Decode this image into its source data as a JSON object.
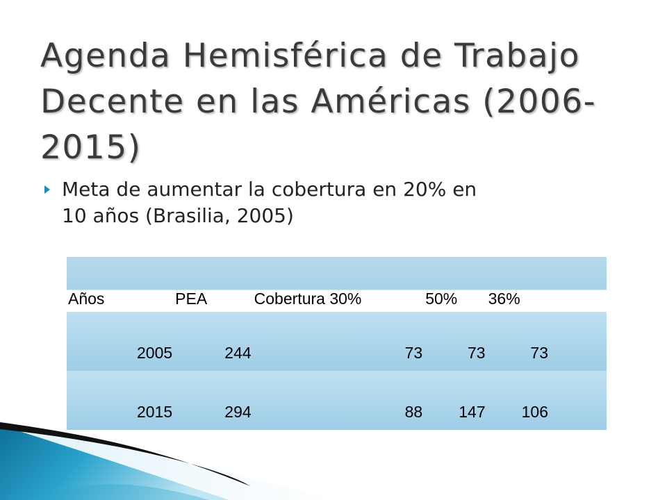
{
  "slide": {
    "title": "Agenda Hemisférica de Trabajo Decente en las Américas (2006-2015)",
    "bullet": {
      "line1": "Meta de aumentar la cobertura en 20% en",
      "line2": "10 años (Brasilia, 2005)"
    },
    "table": {
      "headers": [
        "Años",
        "PEA",
        "Cobertura 30%",
        "50%",
        "36%"
      ],
      "rows": [
        [
          "2005",
          "244",
          "73",
          "73",
          "73"
        ],
        [
          "2015",
          "294",
          "88",
          "147",
          "106"
        ]
      ]
    },
    "colors": {
      "title": "#3a3a3a",
      "bullet_marker": "#1a8fb4",
      "table_fill": "#a9d2e8",
      "decor_blue": "#1a8fb4"
    },
    "icons": [
      "bullet-arrow-icon"
    ]
  }
}
